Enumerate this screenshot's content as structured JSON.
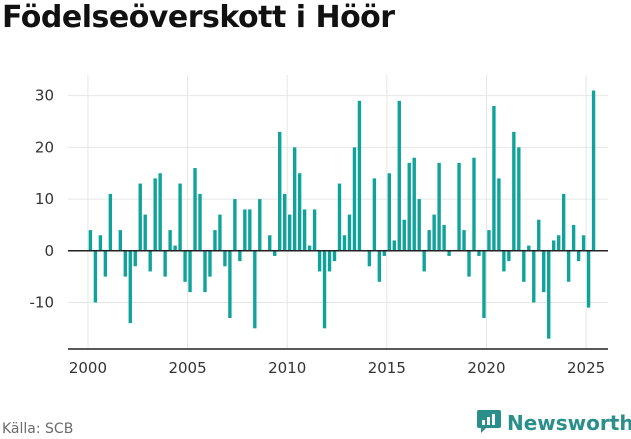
{
  "title": "Födelseöverskott i Höör",
  "source": "Källa: SCB",
  "brand": "Newsworthy",
  "colors": {
    "bar": "#10a39b",
    "axis": "#222222",
    "grid": "#e6e6e6",
    "brand": "#2a8f8a"
  },
  "chart_data": {
    "type": "bar",
    "title": "Födelseöverskott i Höör",
    "xlabel": "",
    "ylabel": "",
    "xlim": [
      1999.0,
      2026.1
    ],
    "ylim": [
      -19,
      34
    ],
    "x_ticks": [
      2000,
      2005,
      2010,
      2015,
      2020,
      2025
    ],
    "y_ticks": [
      -10,
      0,
      10,
      20,
      30
    ],
    "grid": true,
    "bar_width_years": 0.17,
    "x": [
      2000.125,
      2000.375,
      2000.625,
      2000.875,
      2001.125,
      2001.375,
      2001.625,
      2001.875,
      2002.125,
      2002.375,
      2002.625,
      2002.875,
      2003.125,
      2003.375,
      2003.625,
      2003.875,
      2004.125,
      2004.375,
      2004.625,
      2004.875,
      2005.125,
      2005.375,
      2005.625,
      2005.875,
      2006.125,
      2006.375,
      2006.625,
      2006.875,
      2007.125,
      2007.375,
      2007.625,
      2007.875,
      2008.125,
      2008.375,
      2008.625,
      2008.875,
      2009.125,
      2009.375,
      2009.625,
      2009.875,
      2010.125,
      2010.375,
      2010.625,
      2010.875,
      2011.125,
      2011.375,
      2011.625,
      2011.875,
      2012.125,
      2012.375,
      2012.625,
      2012.875,
      2013.125,
      2013.375,
      2013.625,
      2013.875,
      2014.125,
      2014.375,
      2014.625,
      2014.875,
      2015.125,
      2015.375,
      2015.625,
      2015.875,
      2016.125,
      2016.375,
      2016.625,
      2016.875,
      2017.125,
      2017.375,
      2017.625,
      2017.875,
      2018.125,
      2018.375,
      2018.625,
      2018.875,
      2019.125,
      2019.375,
      2019.625,
      2019.875,
      2020.125,
      2020.375,
      2020.625,
      2020.875,
      2021.125,
      2021.375,
      2021.625,
      2021.875,
      2022.125,
      2022.375,
      2022.625,
      2022.875,
      2023.125,
      2023.375,
      2023.625,
      2023.875,
      2024.125,
      2024.375,
      2024.625,
      2024.875,
      2025.125,
      2025.375
    ],
    "values": [
      4,
      -10,
      3,
      -5,
      11,
      0,
      4,
      -5,
      -14,
      -3,
      13,
      7,
      -4,
      14,
      15,
      -5,
      4,
      1,
      13,
      -6,
      -8,
      16,
      11,
      -8,
      -5,
      4,
      7,
      -3,
      -13,
      10,
      -2,
      8,
      8,
      -15,
      10,
      0,
      3,
      -1,
      23,
      11,
      7,
      20,
      15,
      8,
      1,
      8,
      -4,
      -15,
      -4,
      -2,
      13,
      3,
      7,
      20,
      29,
      0,
      -3,
      14,
      -6,
      -1,
      15,
      2,
      29,
      6,
      17,
      18,
      10,
      -4,
      4,
      7,
      17,
      5,
      -1,
      0,
      17,
      4,
      -5,
      18,
      -1,
      -13,
      4,
      28,
      14,
      -4,
      -2,
      23,
      20,
      -6,
      1,
      -10,
      6,
      -8,
      -17,
      2,
      3,
      11,
      -6,
      5,
      -2,
      3,
      -11,
      31
    ]
  }
}
